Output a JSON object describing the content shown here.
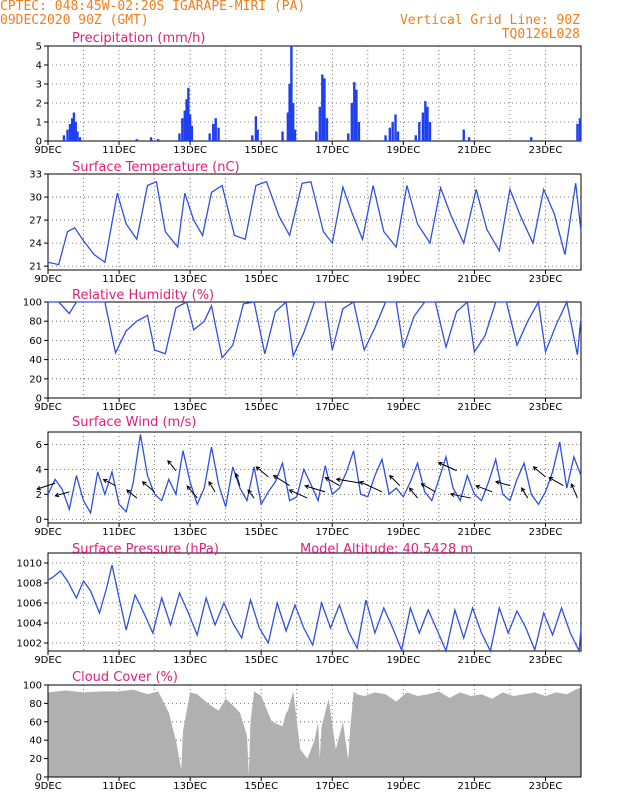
{
  "header": {
    "left_line1": "CPTEC:   048:45W-02:20S  IGARAPE-MIRI (PA)",
    "left_line2": "09DEC2020 90Z (GMT)",
    "right_line1": "Vertical Grid Line: 90Z",
    "right_line2": "TQ0126L028"
  },
  "colors": {
    "header": "#f07d1e",
    "title": "#e0207a",
    "line": "#3050e0",
    "bar": "#2040f0",
    "cloud": "#b0b0b0"
  },
  "x_ticks": [
    "9DEC",
    "11DEC",
    "13DEC",
    "15DEC",
    "17DEC",
    "19DEC",
    "21DEC",
    "23DEC"
  ],
  "chart_data": [
    {
      "type": "bar",
      "title": "Precipitation (mm/h)",
      "ylim": [
        0,
        5
      ],
      "yticks": [
        "0",
        "1",
        "2",
        "3",
        "4",
        "5"
      ],
      "x_days_range": [
        9,
        24
      ],
      "bars": [
        [
          9.45,
          0.3
        ],
        [
          9.55,
          0.6
        ],
        [
          9.62,
          0.9
        ],
        [
          9.68,
          1.2
        ],
        [
          9.73,
          1.5
        ],
        [
          9.78,
          1.0
        ],
        [
          9.83,
          0.5
        ],
        [
          9.9,
          0.2
        ],
        [
          11.5,
          0.1
        ],
        [
          11.9,
          0.2
        ],
        [
          12.1,
          0.1
        ],
        [
          12.7,
          0.4
        ],
        [
          12.78,
          1.2
        ],
        [
          12.85,
          1.6
        ],
        [
          12.9,
          2.2
        ],
        [
          12.95,
          2.8
        ],
        [
          13.0,
          1.4
        ],
        [
          13.05,
          0.8
        ],
        [
          13.55,
          0.4
        ],
        [
          13.65,
          0.9
        ],
        [
          13.72,
          1.2
        ],
        [
          13.8,
          0.7
        ],
        [
          14.75,
          0.3
        ],
        [
          14.85,
          1.3
        ],
        [
          14.9,
          0.6
        ],
        [
          15.6,
          0.5
        ],
        [
          15.75,
          1.5
        ],
        [
          15.8,
          3.0
        ],
        [
          15.85,
          5.0
        ],
        [
          15.9,
          2.0
        ],
        [
          15.95,
          0.6
        ],
        [
          16.55,
          0.5
        ],
        [
          16.65,
          1.8
        ],
        [
          16.72,
          3.5
        ],
        [
          16.78,
          3.3
        ],
        [
          16.85,
          1.2
        ],
        [
          17.45,
          0.4
        ],
        [
          17.55,
          2.0
        ],
        [
          17.62,
          3.1
        ],
        [
          17.68,
          2.7
        ],
        [
          17.75,
          1.0
        ],
        [
          18.5,
          0.3
        ],
        [
          18.62,
          0.7
        ],
        [
          18.7,
          1.0
        ],
        [
          18.78,
          1.4
        ],
        [
          18.85,
          0.5
        ],
        [
          19.35,
          0.3
        ],
        [
          19.45,
          1.0
        ],
        [
          19.55,
          1.5
        ],
        [
          19.62,
          2.1
        ],
        [
          19.68,
          1.8
        ],
        [
          19.75,
          1.0
        ],
        [
          20.7,
          0.6
        ],
        [
          20.85,
          0.2
        ],
        [
          22.6,
          0.2
        ],
        [
          23.9,
          0.9
        ],
        [
          23.97,
          1.2
        ]
      ]
    },
    {
      "type": "line",
      "title": "Surface Temperature (nC)",
      "ylim": [
        20.5,
        33
      ],
      "yticks": [
        "21",
        "24",
        "27",
        "30",
        "33"
      ],
      "x_days_range": [
        9,
        24
      ],
      "x": [
        9.0,
        9.3,
        9.55,
        9.75,
        10.0,
        10.3,
        10.6,
        10.95,
        11.2,
        11.5,
        11.8,
        12.05,
        12.3,
        12.65,
        12.85,
        13.1,
        13.35,
        13.6,
        13.9,
        14.25,
        14.55,
        14.85,
        15.15,
        15.5,
        15.8,
        16.15,
        16.4,
        16.75,
        17.0,
        17.3,
        17.55,
        17.85,
        18.15,
        18.45,
        18.8,
        19.1,
        19.4,
        19.75,
        20.05,
        20.35,
        20.7,
        21.05,
        21.35,
        21.7,
        22.0,
        22.3,
        22.65,
        22.95,
        23.25,
        23.55,
        23.85,
        24.0
      ],
      "y": [
        21.5,
        21.2,
        25.5,
        26.0,
        24.3,
        22.5,
        21.5,
        30.5,
        26.5,
        24.5,
        31.5,
        32.0,
        25.5,
        23.5,
        30.5,
        27.0,
        25.0,
        30.6,
        31.5,
        25.0,
        24.5,
        31.5,
        32.0,
        27.5,
        25.0,
        31.8,
        32.0,
        25.5,
        24.0,
        31.3,
        28.0,
        24.5,
        31.5,
        25.5,
        23.5,
        31.5,
        26.5,
        24.0,
        31.2,
        27.5,
        24.0,
        31.0,
        25.8,
        23.0,
        31.0,
        27.5,
        24.0,
        31.0,
        27.8,
        22.5,
        31.8,
        25.5
      ]
    },
    {
      "type": "line",
      "title": "Relative Humidity (%)",
      "ylim": [
        0,
        100
      ],
      "yticks": [
        "0",
        "20",
        "40",
        "60",
        "80",
        "100"
      ],
      "x_days_range": [
        9,
        24
      ],
      "x": [
        9.0,
        9.3,
        9.6,
        9.8,
        10.0,
        10.3,
        10.6,
        10.9,
        11.2,
        11.5,
        11.8,
        12.0,
        12.3,
        12.6,
        12.9,
        13.1,
        13.4,
        13.6,
        13.9,
        14.2,
        14.5,
        14.8,
        15.1,
        15.4,
        15.7,
        15.9,
        16.2,
        16.5,
        16.8,
        17.0,
        17.3,
        17.6,
        17.9,
        18.2,
        18.5,
        18.8,
        19.0,
        19.3,
        19.6,
        19.9,
        20.2,
        20.5,
        20.8,
        21.0,
        21.3,
        21.6,
        21.9,
        22.2,
        22.5,
        22.8,
        23.0,
        23.3,
        23.6,
        23.9,
        24.0
      ],
      "y": [
        100,
        100,
        88,
        100,
        100,
        100,
        100,
        47,
        70,
        80,
        86,
        50,
        46,
        94,
        100,
        71,
        80,
        96,
        42,
        55,
        98,
        100,
        46,
        90,
        100,
        44,
        68,
        100,
        100,
        50,
        93,
        100,
        50,
        73,
        100,
        100,
        52,
        85,
        100,
        100,
        53,
        90,
        100,
        48,
        65,
        100,
        100,
        55,
        80,
        100,
        48,
        76,
        100,
        45,
        84
      ]
    },
    {
      "type": "line",
      "title": "Surface Wind (m/s)",
      "ylim": [
        -0.3,
        7
      ],
      "yticks": [
        "0",
        "2",
        "4",
        "6"
      ],
      "x_days_range": [
        9,
        24
      ],
      "x": [
        9.0,
        9.2,
        9.4,
        9.6,
        9.8,
        10.0,
        10.2,
        10.4,
        10.6,
        10.8,
        11.0,
        11.2,
        11.4,
        11.6,
        11.8,
        12.0,
        12.2,
        12.4,
        12.6,
        12.8,
        13.0,
        13.2,
        13.4,
        13.6,
        13.8,
        14.0,
        14.2,
        14.4,
        14.6,
        14.8,
        15.0,
        15.2,
        15.4,
        15.6,
        15.8,
        16.0,
        16.2,
        16.4,
        16.6,
        16.8,
        17.0,
        17.2,
        17.4,
        17.6,
        17.8,
        18.0,
        18.2,
        18.4,
        18.6,
        18.8,
        19.0,
        19.2,
        19.4,
        19.6,
        19.8,
        20.0,
        20.2,
        20.4,
        20.6,
        20.8,
        21.0,
        21.2,
        21.4,
        21.6,
        21.8,
        22.0,
        22.2,
        22.4,
        22.6,
        22.8,
        23.0,
        23.2,
        23.4,
        23.6,
        23.8,
        24.0
      ],
      "y": [
        2.0,
        3.2,
        2.4,
        0.8,
        3.5,
        1.5,
        0.5,
        3.8,
        2.0,
        3.8,
        1.2,
        0.6,
        3.0,
        6.8,
        3.5,
        2.0,
        1.5,
        3.2,
        2.0,
        5.5,
        3.0,
        1.2,
        2.5,
        5.8,
        2.8,
        1.0,
        4.2,
        2.5,
        1.5,
        4.2,
        1.2,
        2.2,
        3.0,
        4.5,
        1.5,
        1.8,
        4.0,
        2.8,
        1.5,
        4.3,
        2.0,
        2.5,
        3.8,
        5.5,
        2.0,
        1.8,
        3.5,
        4.8,
        2.0,
        2.5,
        1.8,
        3.0,
        4.5,
        2.2,
        1.5,
        3.2,
        5.0,
        2.5,
        1.5,
        3.5,
        2.0,
        1.5,
        3.0,
        4.8,
        2.0,
        1.5,
        3.2,
        4.5,
        2.0,
        1.2,
        2.2,
        3.8,
        6.2,
        2.5,
        5.0,
        3.5
      ],
      "arrow_x": [
        9.2,
        9.6,
        10.9,
        11.5,
        12.0,
        12.6,
        13.2,
        13.7,
        14.4,
        14.8,
        15.2,
        15.8,
        16.3,
        16.8,
        17.2,
        17.8,
        18.4,
        18.9,
        19.4,
        19.9,
        20.5,
        20.9,
        21.5,
        22.0,
        22.5,
        23.0,
        23.5,
        23.9
      ],
      "arrow_dx": [
        -18,
        -14,
        -12,
        -10,
        -12,
        -8,
        -10,
        -6,
        -4,
        -6,
        -12,
        -16,
        -18,
        -20,
        -14,
        -24,
        -22,
        -10,
        -8,
        -14,
        -18,
        -20,
        -16,
        -14,
        -6,
        -12,
        -14,
        -6
      ],
      "arrow_dy": [
        6,
        4,
        -6,
        -8,
        -10,
        -10,
        -12,
        -10,
        -12,
        -8,
        -10,
        -10,
        -8,
        -6,
        -8,
        -4,
        -10,
        -10,
        -10,
        -8,
        -8,
        -4,
        -6,
        -4,
        -10,
        -10,
        -8,
        -14
      ]
    },
    {
      "type": "line",
      "title": "Surface Pressure (hPa)",
      "annotation": "Model Altitude: 40.5428  m",
      "ylim": [
        1001.2,
        1011
      ],
      "yticks": [
        "1002",
        "1004",
        "1006",
        "1008",
        "1010"
      ],
      "x_days_range": [
        9,
        24
      ],
      "x": [
        9.0,
        9.15,
        9.35,
        9.55,
        9.8,
        10.0,
        10.2,
        10.45,
        10.65,
        10.8,
        11.0,
        11.2,
        11.45,
        11.7,
        11.95,
        12.2,
        12.45,
        12.7,
        12.95,
        13.2,
        13.45,
        13.7,
        13.95,
        14.2,
        14.45,
        14.7,
        14.95,
        15.2,
        15.45,
        15.7,
        15.95,
        16.2,
        16.45,
        16.7,
        16.95,
        17.2,
        17.45,
        17.7,
        17.95,
        18.2,
        18.45,
        18.7,
        18.95,
        19.2,
        19.45,
        19.7,
        19.95,
        20.2,
        20.45,
        20.7,
        20.95,
        21.2,
        21.45,
        21.7,
        21.95,
        22.2,
        22.45,
        22.7,
        22.95,
        23.2,
        23.45,
        23.7,
        23.95,
        24.0
      ],
      "y": [
        1008.3,
        1008.6,
        1009.2,
        1008.2,
        1006.5,
        1008.2,
        1007.2,
        1005.0,
        1007.5,
        1009.8,
        1006.5,
        1003.3,
        1006.8,
        1005.0,
        1003.0,
        1006.5,
        1003.8,
        1007.0,
        1005.0,
        1002.8,
        1006.5,
        1003.8,
        1006.0,
        1004.0,
        1002.5,
        1006.3,
        1003.5,
        1002.0,
        1006.0,
        1003.2,
        1005.8,
        1003.5,
        1001.8,
        1006.0,
        1003.5,
        1005.8,
        1003.2,
        1001.5,
        1006.3,
        1003.0,
        1005.5,
        1003.5,
        1001.3,
        1005.5,
        1003.0,
        1005.3,
        1003.3,
        1001.0,
        1005.3,
        1002.5,
        1005.5,
        1003.0,
        1001.2,
        1005.5,
        1003.0,
        1005.2,
        1003.5,
        1001.3,
        1005.0,
        1002.8,
        1005.5,
        1003.0,
        1001.2,
        1003.5
      ]
    },
    {
      "type": "area",
      "title": "Cloud Cover (%)",
      "ylim": [
        0,
        100
      ],
      "yticks": [
        "0",
        "20",
        "40",
        "60",
        "80",
        "100"
      ],
      "x_days_range": [
        9,
        24
      ],
      "x": [
        9.0,
        9.5,
        10.0,
        10.5,
        11.0,
        11.4,
        11.8,
        12.1,
        12.4,
        12.6,
        12.75,
        12.8,
        13.0,
        13.2,
        13.5,
        13.8,
        14.0,
        14.2,
        14.4,
        14.6,
        14.65,
        14.7,
        14.8,
        15.0,
        15.3,
        15.6,
        15.7,
        15.75,
        15.9,
        16.1,
        16.3,
        16.5,
        16.6,
        16.65,
        16.7,
        16.9,
        17.1,
        17.3,
        17.45,
        17.5,
        17.6,
        17.7,
        17.9,
        18.2,
        18.5,
        18.8,
        19.1,
        19.4,
        19.7,
        20.0,
        20.3,
        20.6,
        20.9,
        21.2,
        21.5,
        21.8,
        22.1,
        22.4,
        22.7,
        23.0,
        23.3,
        23.6,
        23.9,
        24.0
      ],
      "y": [
        92,
        94,
        92,
        93,
        93,
        95,
        90,
        93,
        70,
        40,
        8,
        50,
        92,
        90,
        80,
        72,
        85,
        78,
        70,
        45,
        2,
        60,
        93,
        88,
        60,
        55,
        70,
        72,
        93,
        30,
        20,
        40,
        60,
        20,
        55,
        85,
        30,
        60,
        18,
        50,
        93,
        90,
        88,
        92,
        90,
        82,
        92,
        88,
        90,
        93,
        86,
        92,
        88,
        90,
        85,
        92,
        88,
        90,
        92,
        88,
        92,
        90,
        96,
        97
      ]
    }
  ]
}
